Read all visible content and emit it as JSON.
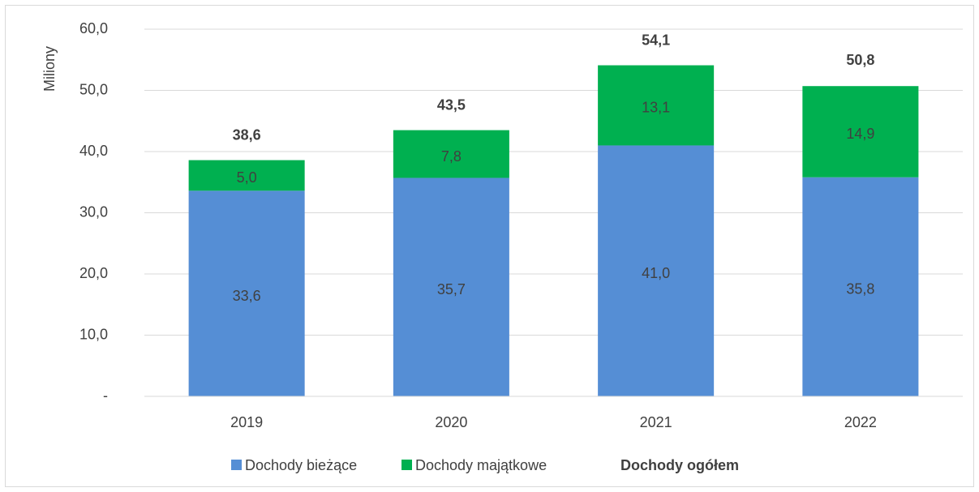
{
  "chart_data": {
    "type": "stacked_bar",
    "y_label": "Miliony",
    "categories": [
      "2019",
      "2020",
      "2021",
      "2022"
    ],
    "series": [
      {
        "name": "Dochody bieżące",
        "color": "#558ed5",
        "values": [
          33.6,
          35.7,
          41.0,
          35.8
        ],
        "value_labels": [
          "33,6",
          "35,7",
          "41,0",
          "35,8"
        ]
      },
      {
        "name": "Dochody majątkowe",
        "color": "#00b050",
        "values": [
          5.0,
          7.8,
          13.1,
          14.9
        ],
        "value_labels": [
          "5,0",
          "7,8",
          "13,1",
          "14,9"
        ]
      }
    ],
    "totals": {
      "name": "Dochody ogółem",
      "values": [
        38.6,
        43.5,
        54.1,
        50.8
      ],
      "value_labels": [
        "38,6",
        "43,5",
        "54,1",
        "50,8"
      ]
    },
    "ylim": [
      0,
      60
    ],
    "yticks": [
      {
        "value": 0,
        "label": "-"
      },
      {
        "value": 10,
        "label": "10,0"
      },
      {
        "value": 20,
        "label": "20,0"
      },
      {
        "value": 30,
        "label": "30,0"
      },
      {
        "value": 40,
        "label": "40,0"
      },
      {
        "value": 50,
        "label": "50,0"
      },
      {
        "value": 60,
        "label": "60,0"
      }
    ],
    "grid": true,
    "legend": "bottom"
  }
}
